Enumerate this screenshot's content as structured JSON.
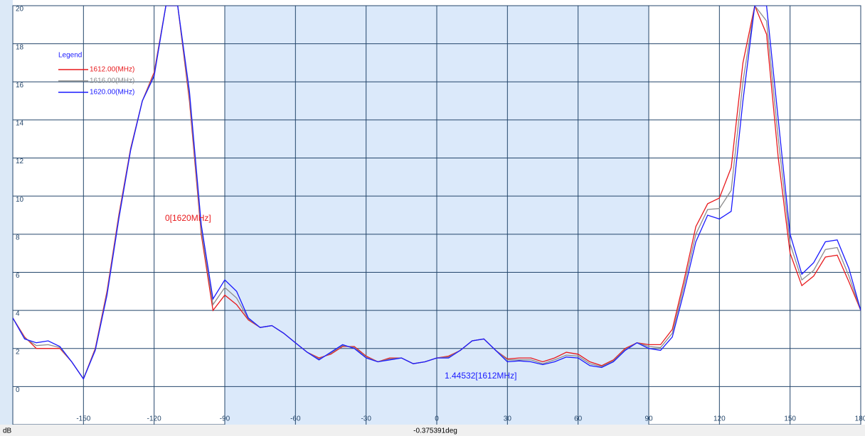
{
  "chart_data": {
    "type": "line",
    "x": [
      -180,
      -175,
      -170,
      -165,
      -160,
      -155,
      -150,
      -145,
      -140,
      -135,
      -130,
      -125,
      -120,
      -115,
      -110,
      -105,
      -100,
      -95,
      -90,
      -85,
      -80,
      -75,
      -70,
      -65,
      -60,
      -55,
      -50,
      -45,
      -40,
      -35,
      -30,
      -25,
      -20,
      -15,
      -10,
      -5,
      0,
      5,
      10,
      15,
      20,
      25,
      30,
      35,
      40,
      45,
      50,
      55,
      60,
      65,
      70,
      75,
      80,
      85,
      90,
      95,
      100,
      105,
      110,
      115,
      120,
      125,
      130,
      135,
      140,
      145,
      150,
      155,
      160,
      165,
      170,
      175,
      180
    ],
    "series": [
      {
        "name": "1612.00(MHz)",
        "color": "#e8191c",
        "values": [
          3.6,
          2.6,
          2.0,
          2.0,
          2.0,
          1.3,
          0.4,
          2.0,
          5.0,
          9.0,
          12.5,
          15,
          16.5,
          20,
          20,
          15,
          8,
          4.0,
          4.8,
          4.3,
          3.5,
          3.1,
          3.2,
          2.8,
          2.3,
          1.8,
          1.5,
          1.7,
          2.1,
          2.1,
          1.6,
          1.3,
          1.5,
          1.5,
          1.2,
          1.3,
          1.5,
          1.6,
          1.9,
          2.4,
          2.5,
          1.9,
          1.45,
          1.5,
          1.5,
          1.3,
          1.5,
          1.8,
          1.7,
          1.3,
          1.1,
          1.4,
          2.0,
          2.3,
          2.2,
          2.2,
          3.0,
          5.6,
          8.4,
          9.6,
          9.9,
          11.5,
          17,
          20,
          18.5,
          12,
          7,
          5.3,
          5.8,
          6.8,
          6.9,
          5.5,
          4.0
        ]
      },
      {
        "name": "1616.00(MHz)",
        "color": "#8c8c8c",
        "values": [
          3.6,
          2.55,
          2.15,
          2.2,
          2.05,
          1.3,
          0.4,
          1.95,
          4.9,
          8.9,
          12.45,
          15.0,
          16.4,
          20,
          20,
          15.2,
          8.2,
          4.3,
          5.2,
          4.65,
          3.55,
          3.1,
          3.2,
          2.8,
          2.3,
          1.8,
          1.45,
          1.75,
          2.15,
          2.05,
          1.55,
          1.3,
          1.45,
          1.5,
          1.2,
          1.3,
          1.5,
          1.55,
          1.9,
          2.4,
          2.5,
          1.9,
          1.4,
          1.4,
          1.4,
          1.2,
          1.4,
          1.65,
          1.6,
          1.2,
          1.05,
          1.35,
          1.95,
          2.3,
          2.1,
          2.05,
          2.8,
          5.3,
          8.0,
          9.3,
          9.35,
          10.3,
          16,
          20,
          19.2,
          13,
          7.5,
          5.6,
          6.1,
          7.2,
          7.3,
          5.8,
          4.0
        ]
      },
      {
        "name": "1620.00(MHz)",
        "color": "#1a1aff",
        "values": [
          3.6,
          2.5,
          2.3,
          2.4,
          2.1,
          1.3,
          0.4,
          1.9,
          4.8,
          8.8,
          12.4,
          15.0,
          16.3,
          20,
          20,
          15.5,
          8.5,
          4.6,
          5.6,
          5.0,
          3.6,
          3.1,
          3.2,
          2.8,
          2.3,
          1.8,
          1.4,
          1.8,
          2.2,
          2.0,
          1.5,
          1.3,
          1.4,
          1.5,
          1.2,
          1.3,
          1.5,
          1.5,
          1.9,
          2.4,
          2.5,
          1.9,
          1.3,
          1.35,
          1.3,
          1.15,
          1.3,
          1.55,
          1.5,
          1.1,
          1.0,
          1.3,
          1.9,
          2.3,
          2.0,
          1.9,
          2.6,
          5.0,
          7.6,
          9.0,
          8.8,
          9.2,
          15.0,
          20,
          20,
          14,
          8,
          5.9,
          6.5,
          7.6,
          7.7,
          6.2,
          4.0
        ]
      }
    ],
    "xlim": [
      -180,
      180
    ],
    "ylim": [
      -2,
      20
    ],
    "xticks": [
      -150,
      -120,
      -90,
      -60,
      -30,
      0,
      30,
      60,
      90,
      120,
      150,
      180
    ],
    "yticks": [
      0,
      2,
      4,
      6,
      8,
      10,
      12,
      14,
      16,
      18,
      20
    ],
    "grid": true,
    "shaded_xrange": [
      -90,
      90
    ],
    "legend_title": "Legend",
    "annotations": [
      "0[1620MHz]",
      "1.44532[1612MHz]"
    ],
    "y_unit": "dB",
    "status": "-0.375391deg"
  }
}
